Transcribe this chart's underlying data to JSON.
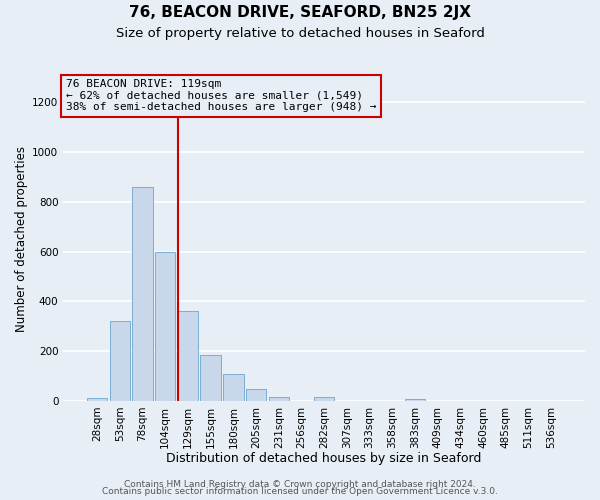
{
  "title1": "76, BEACON DRIVE, SEAFORD, BN25 2JX",
  "title2": "Size of property relative to detached houses in Seaford",
  "xlabel": "Distribution of detached houses by size in Seaford",
  "ylabel": "Number of detached properties",
  "bar_labels": [
    "28sqm",
    "53sqm",
    "78sqm",
    "104sqm",
    "129sqm",
    "155sqm",
    "180sqm",
    "205sqm",
    "231sqm",
    "256sqm",
    "282sqm",
    "307sqm",
    "333sqm",
    "358sqm",
    "383sqm",
    "409sqm",
    "434sqm",
    "460sqm",
    "485sqm",
    "511sqm",
    "536sqm"
  ],
  "bar_values": [
    10,
    320,
    860,
    600,
    360,
    185,
    107,
    47,
    15,
    0,
    17,
    0,
    0,
    0,
    8,
    0,
    0,
    0,
    0,
    0,
    0
  ],
  "bar_color": "#c8d8ea",
  "bar_edgecolor": "#7aaed4",
  "bg_color": "#e8eef5",
  "grid_color": "#ffffff",
  "vline_color": "#cc0000",
  "vline_x_index": 4,
  "ylim": [
    0,
    1300
  ],
  "yticks": [
    0,
    200,
    400,
    600,
    800,
    1000,
    1200
  ],
  "annotation_title": "76 BEACON DRIVE: 119sqm",
  "annotation_line1": "← 62% of detached houses are smaller (1,549)",
  "annotation_line2": "38% of semi-detached houses are larger (948) →",
  "annotation_box_edgecolor": "#cc0000",
  "footer1": "Contains HM Land Registry data © Crown copyright and database right 2024.",
  "footer2": "Contains public sector information licensed under the Open Government Licence v.3.0.",
  "title1_fontsize": 11,
  "title2_fontsize": 9.5,
  "xlabel_fontsize": 9,
  "ylabel_fontsize": 8.5,
  "tick_fontsize": 7.5,
  "annotation_fontsize": 8,
  "footer_fontsize": 6.5
}
